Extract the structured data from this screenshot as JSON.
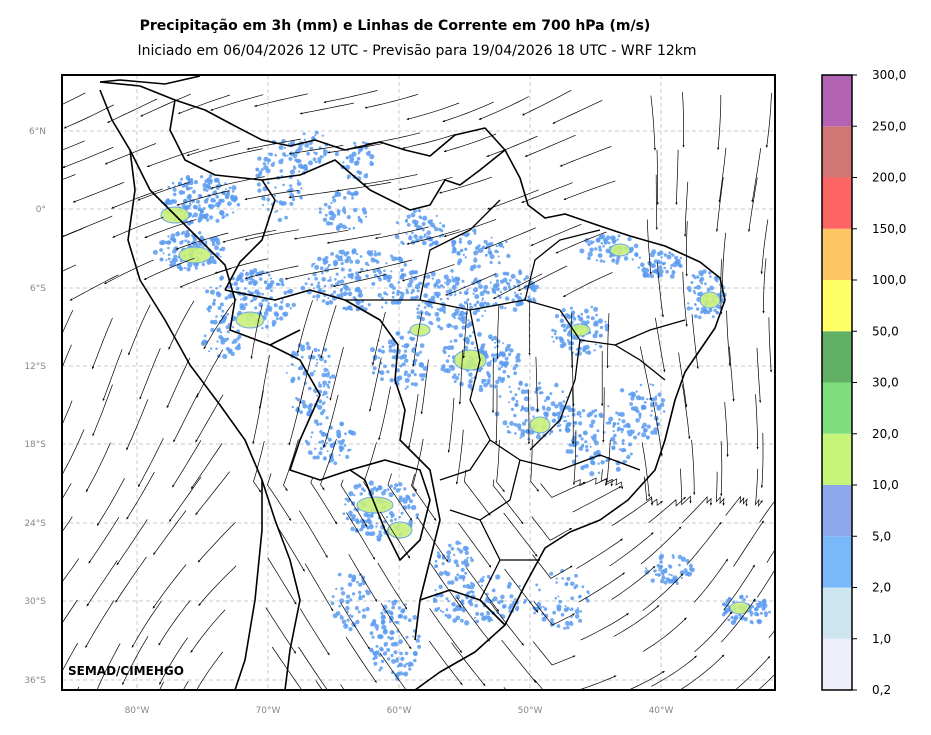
{
  "title": "Precipitação em 3h (mm) e Linhas de Corrente em 700 hPa (m/s)",
  "subtitle": "Iniciado em 06/04/2026 12 UTC - Previsão para 19/04/2026 18 UTC - WRF 12km",
  "credit": "SEMAD/CIMEHGO",
  "lat_labels": [
    "6°N",
    "0°",
    "6°S",
    "12°S",
    "18°S",
    "24°S",
    "30°S",
    "36°S"
  ],
  "lon_labels": [
    "80°W",
    "70°W",
    "60°W",
    "50°W",
    "40°W"
  ],
  "colorbar": {
    "labels": [
      "0,2",
      "1,0",
      "2,0",
      "5,0",
      "10,0",
      "20,0",
      "30,0",
      "50,0",
      "100,0",
      "150,0",
      "200,0",
      "250,0",
      "300,0"
    ],
    "colors": [
      "#eeeefb",
      "#cde6ef",
      "#79b9fb",
      "#8ea8ee",
      "#c7f57a",
      "#7fdf7f",
      "#62b066",
      "#ffff66",
      "#fec565",
      "#fd6564",
      "#d07776",
      "#b263b4"
    ]
  },
  "map": {
    "style": {
      "gridline_color": "#bbbbbb",
      "border_color": "#000000",
      "streamline_color": "#000000",
      "rain_light_color": "#5b9bf0",
      "rain_moderate_color": "#c8f07a"
    }
  }
}
